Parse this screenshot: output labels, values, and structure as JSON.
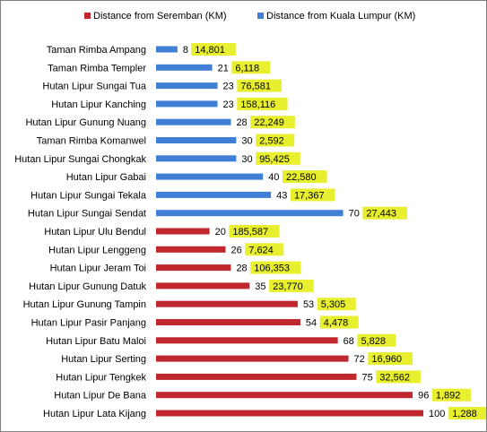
{
  "chart_data": {
    "type": "bar",
    "orientation": "horizontal",
    "legend": {
      "placement": "top-right",
      "entries": [
        {
          "name": "Distance from Seremban (KM)",
          "color": "#c0282d"
        },
        {
          "name": "Distance from Kuala Lumpur (KM)",
          "color": "#3f7fd6"
        }
      ]
    },
    "grid": false,
    "xlim": [
      0,
      100
    ],
    "highlight_color": "#e8ef2e",
    "categories": [
      "Taman Rimba Ampang",
      "Taman Rimba Templer",
      "Hutan Lipur Sungai Tua",
      "Hutan Lipur Kanching",
      "Hutan Lipur Gunung Nuang",
      "Taman Rimba Komanwel",
      "Hutan Lipur Sungai Chongkak",
      "Hutan Lipur Gabai",
      "Hutan Lipur Sungai Tekala",
      "Hutan Lipur Sungai Sendat",
      "Hutan Lipur Ulu Bendul",
      "Hutan Lipur Lenggeng",
      "Hutan Lipur Jeram Toi",
      "Hutan Lipur Gunung Datuk",
      "Hutan Lipur Gunung Tampin",
      "Hutan Lipur Pasir Panjang",
      "Hutan Lipur Batu Maloi",
      "Hutan Lipur Serting",
      "Hutan Lipur Tengkek",
      "Hutan Lipur De Bana",
      "Hutan Lipur Lata Kijang"
    ],
    "values": [
      8,
      21,
      23,
      23,
      28,
      30,
      30,
      40,
      43,
      70,
      20,
      26,
      28,
      35,
      53,
      54,
      68,
      72,
      75,
      96,
      100
    ],
    "series_index": [
      1,
      1,
      1,
      1,
      1,
      1,
      1,
      1,
      1,
      1,
      0,
      0,
      0,
      0,
      0,
      0,
      0,
      0,
      0,
      0,
      0
    ],
    "box_labels": [
      "14,801",
      "6,118",
      "76,581",
      "158,116",
      "22,249",
      "2,592",
      "95,425",
      "22,580",
      "17,367",
      "27,443",
      "185,587",
      "7,624",
      "106,353",
      "23,770",
      "5,305",
      "4,478",
      "5,828",
      "16,960",
      "32,562",
      "1,892",
      "1,288"
    ]
  }
}
